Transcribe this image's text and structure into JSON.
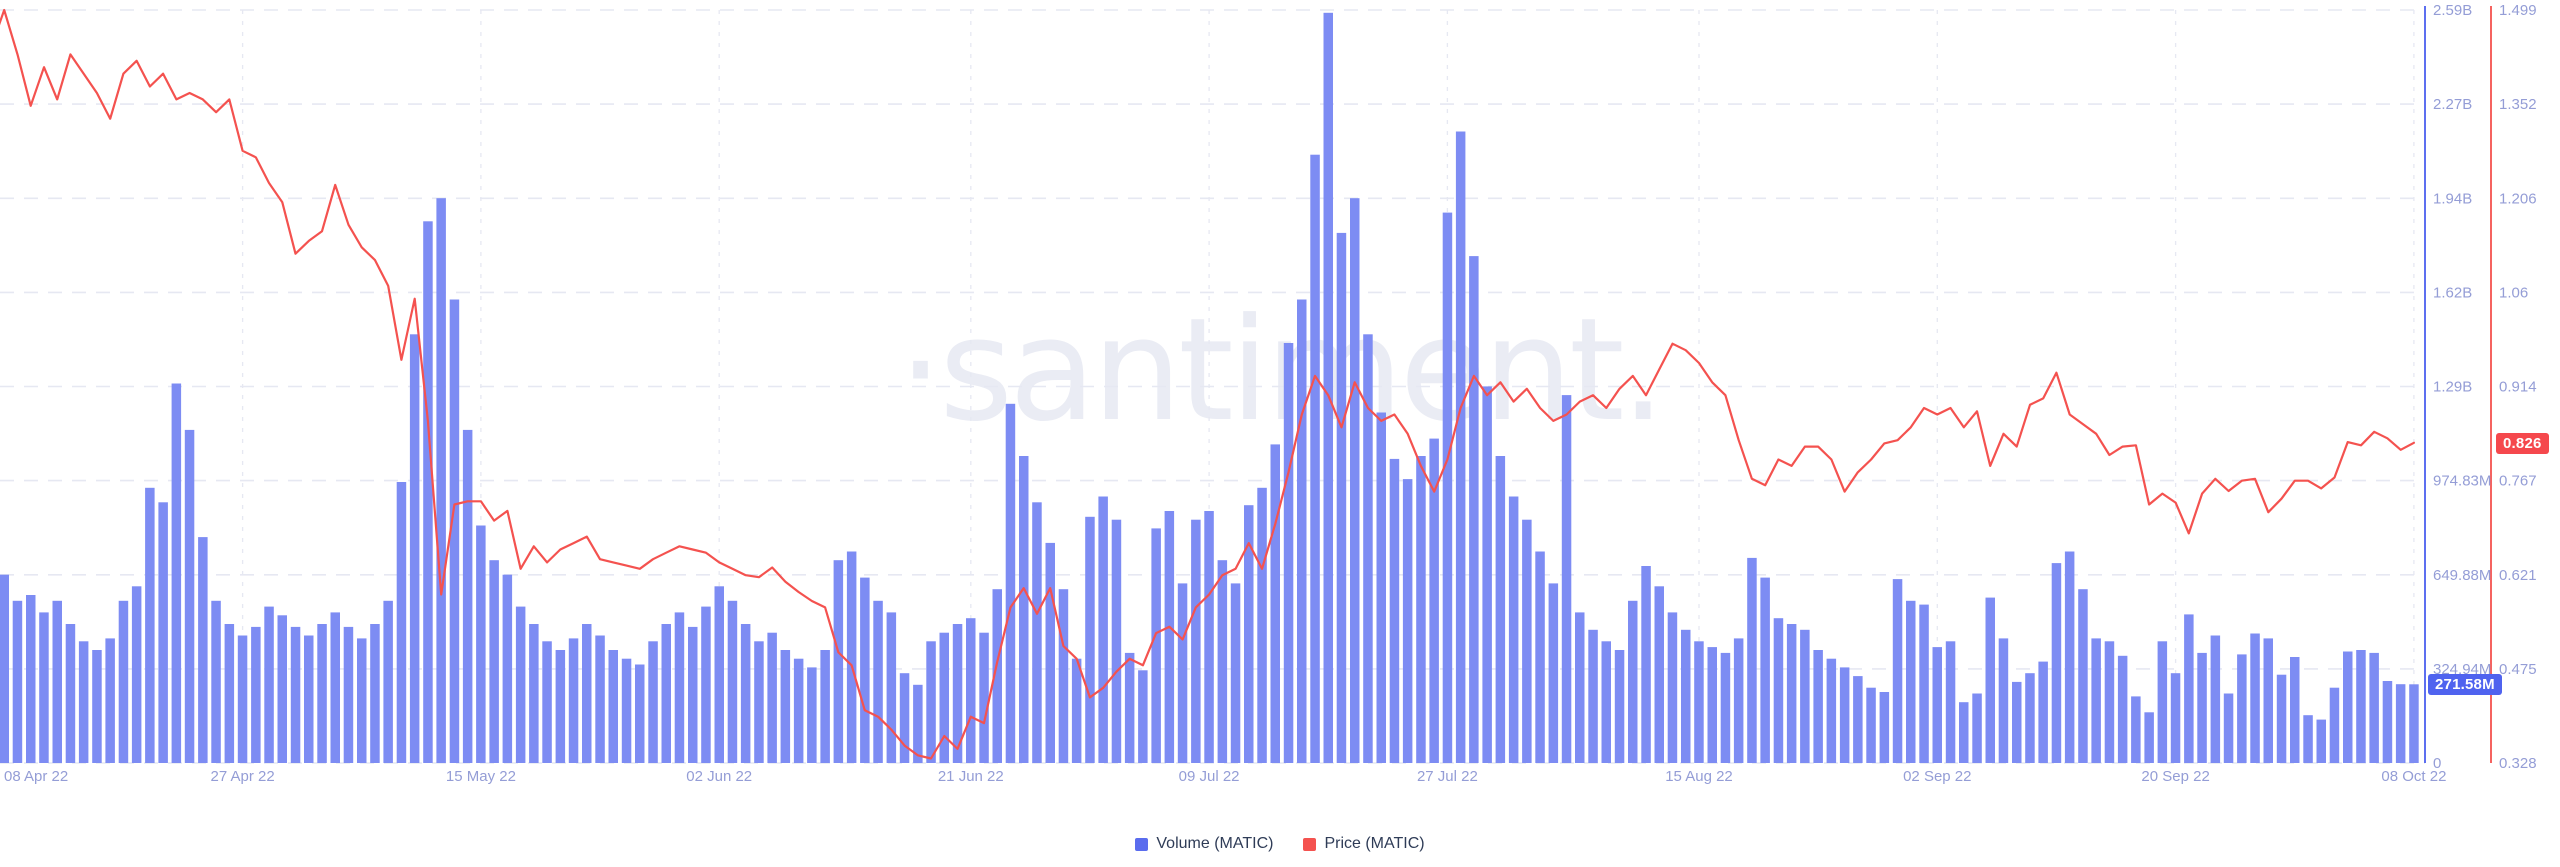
{
  "watermark": "·santiment.",
  "legend": {
    "volume_label": "Volume (MATIC)",
    "price_label": "Price (MATIC)"
  },
  "badges": {
    "volume_current": "271.58M",
    "price_current": "0.826"
  },
  "colors": {
    "bar": "#7d8cf3",
    "line": "#f4524f",
    "volume_axis": "#5d6ff0",
    "price_axis": "#f4524f",
    "grid": "#e6e8f2",
    "axis_text": "#949dd6",
    "legend_text": "#2f3c57",
    "volume_badge_bg": "#4f63ef",
    "price_badge_bg": "#f5484d",
    "watermark": "#eaecf4"
  },
  "chart_data": {
    "type": "combo: volume bars + price line",
    "title": "",
    "xlabel": "",
    "x_tick_labels": [
      "08 Apr 22",
      "27 Apr 22",
      "15 May 22",
      "02 Jun 22",
      "21 Jun 22",
      "09 Jul 22",
      "27 Jul 22",
      "15 Aug 22",
      "02 Sep 22",
      "20 Sep 22",
      "08 Oct 22"
    ],
    "x_tick_day_index": [
      0,
      19,
      37,
      55,
      74,
      92,
      110,
      129,
      147,
      165,
      183
    ],
    "x_range_days": 184,
    "grid": "dashed horizontal and vertical",
    "legend_position": "bottom-center",
    "y_left": {
      "name": "Volume (MATIC)",
      "tick_labels": [
        "0",
        "324.94M",
        "649.88M",
        "974.83M",
        "1.29B",
        "1.62B",
        "1.94B",
        "2.27B",
        "2.59B"
      ],
      "tick_values_musd": [
        0,
        324.94,
        649.88,
        974.83,
        1299.77,
        1624.71,
        1949.65,
        2274.6,
        2599.54
      ],
      "max_musd": 2599.54,
      "current_value": "271.58M"
    },
    "y_right": {
      "name": "Price (MATIC)",
      "tick_labels": [
        "0.328",
        "0.475",
        "0.621",
        "0.767",
        "0.914",
        "1.06",
        "1.206",
        "1.352",
        "1.499"
      ],
      "min": 0.328,
      "max": 1.499,
      "current_value": 0.826
    },
    "series": [
      {
        "name": "Volume (MATIC)",
        "type": "bar",
        "unit": "millions USD",
        "values": [
          700,
          650,
          560,
          580,
          520,
          560,
          480,
          420,
          390,
          430,
          560,
          610,
          950,
          900,
          1310,
          1150,
          780,
          560,
          480,
          440,
          470,
          540,
          510,
          470,
          440,
          480,
          520,
          470,
          430,
          480,
          560,
          970,
          1480,
          1870,
          1950,
          1600,
          1150,
          820,
          700,
          650,
          540,
          480,
          420,
          390,
          430,
          480,
          440,
          390,
          360,
          340,
          420,
          480,
          520,
          470,
          540,
          610,
          560,
          480,
          420,
          450,
          390,
          360,
          330,
          390,
          700,
          730,
          640,
          560,
          520,
          310,
          270,
          420,
          450,
          480,
          500,
          450,
          600,
          1240,
          1060,
          900,
          760,
          600,
          360,
          850,
          920,
          840,
          380,
          320,
          810,
          870,
          620,
          840,
          870,
          700,
          620,
          890,
          950,
          1100,
          1450,
          1600,
          2100,
          2590,
          1830,
          1950,
          1480,
          1210,
          1050,
          980,
          1060,
          1120,
          1900,
          2180,
          1750,
          1300,
          1060,
          920,
          840,
          730,
          620,
          1270,
          520,
          460,
          420,
          390,
          560,
          680,
          610,
          520,
          460,
          420,
          400,
          380,
          430,
          708,
          640,
          500,
          480,
          460,
          390,
          360,
          330,
          300,
          260,
          245,
          635,
          560,
          547,
          400,
          420,
          210,
          240,
          571,
          430,
          280,
          310,
          350,
          690,
          730,
          600,
          430,
          420,
          370,
          230,
          175,
          420,
          310,
          513,
          380,
          440,
          240,
          375,
          447,
          430,
          305,
          366,
          165,
          150,
          260,
          385,
          390,
          380,
          283,
          272,
          271.58
        ]
      },
      {
        "name": "Price (MATIC)",
        "type": "line",
        "unit": "USD",
        "values": [
          1.44,
          1.499,
          1.43,
          1.35,
          1.41,
          1.36,
          1.43,
          1.4,
          1.37,
          1.33,
          1.4,
          1.42,
          1.38,
          1.4,
          1.36,
          1.37,
          1.36,
          1.34,
          1.36,
          1.28,
          1.27,
          1.23,
          1.2,
          1.12,
          1.14,
          1.155,
          1.227,
          1.165,
          1.13,
          1.11,
          1.07,
          0.955,
          1.05,
          0.86,
          0.59,
          0.73,
          0.735,
          0.735,
          0.705,
          0.72,
          0.63,
          0.665,
          0.64,
          0.66,
          0.67,
          0.68,
          0.645,
          0.64,
          0.635,
          0.63,
          0.645,
          0.655,
          0.665,
          0.66,
          0.655,
          0.64,
          0.63,
          0.62,
          0.617,
          0.632,
          0.61,
          0.594,
          0.58,
          0.57,
          0.5,
          0.48,
          0.41,
          0.4,
          0.38,
          0.355,
          0.34,
          0.335,
          0.37,
          0.35,
          0.4,
          0.39,
          0.485,
          0.57,
          0.6,
          0.56,
          0.6,
          0.51,
          0.49,
          0.43,
          0.445,
          0.47,
          0.49,
          0.48,
          0.53,
          0.54,
          0.52,
          0.57,
          0.59,
          0.62,
          0.63,
          0.67,
          0.63,
          0.7,
          0.78,
          0.87,
          0.93,
          0.9,
          0.85,
          0.92,
          0.88,
          0.86,
          0.87,
          0.84,
          0.79,
          0.75,
          0.8,
          0.88,
          0.93,
          0.9,
          0.92,
          0.89,
          0.91,
          0.88,
          0.86,
          0.87,
          0.89,
          0.9,
          0.88,
          0.91,
          0.93,
          0.9,
          0.94,
          0.98,
          0.97,
          0.95,
          0.92,
          0.9,
          0.83,
          0.77,
          0.76,
          0.8,
          0.79,
          0.82,
          0.82,
          0.8,
          0.75,
          0.78,
          0.8,
          0.825,
          0.83,
          0.85,
          0.88,
          0.87,
          0.88,
          0.85,
          0.875,
          0.79,
          0.84,
          0.82,
          0.885,
          0.895,
          0.935,
          0.87,
          0.855,
          0.84,
          0.807,
          0.82,
          0.822,
          0.73,
          0.747,
          0.733,
          0.685,
          0.747,
          0.77,
          0.751,
          0.767,
          0.77,
          0.718,
          0.739,
          0.767,
          0.767,
          0.755,
          0.772,
          0.827,
          0.822,
          0.843,
          0.833,
          0.815,
          0.826
        ]
      }
    ]
  }
}
